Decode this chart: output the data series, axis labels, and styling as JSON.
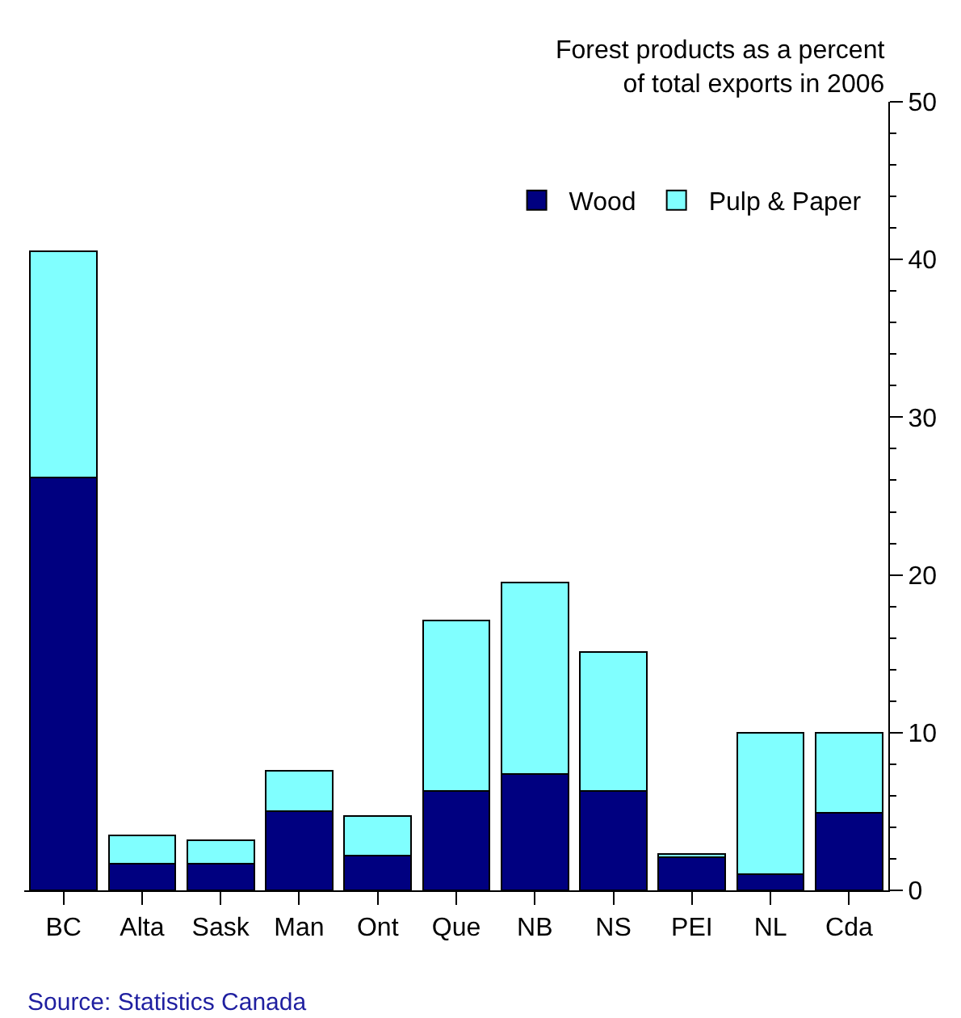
{
  "chart_data": {
    "type": "bar",
    "stacked": true,
    "title": "Forest products as a percent\nof total exports in 2006",
    "categories": [
      "BC",
      "Alta",
      "Sask",
      "Man",
      "Ont",
      "Que",
      "NB",
      "NS",
      "PEI",
      "NL",
      "Cda"
    ],
    "series": [
      {
        "name": "Wood",
        "color": "#000080",
        "values": [
          26.2,
          1.7,
          1.7,
          5.0,
          2.2,
          6.3,
          7.4,
          6.3,
          2.1,
          1.0,
          4.9
        ]
      },
      {
        "name": "Pulp & Paper",
        "color": "#80ffff",
        "values": [
          14.3,
          1.8,
          1.5,
          2.6,
          2.5,
          10.8,
          12.1,
          8.8,
          0.2,
          9.0,
          5.1
        ]
      }
    ],
    "ylim": [
      0,
      50
    ],
    "yticks": [
      0,
      {
        "value": 2,
        "label": null
      },
      {
        "value": 4,
        "label": null
      },
      {
        "value": 6,
        "label": null
      },
      {
        "value": 8,
        "label": null
      },
      10,
      {
        "value": 12,
        "label": null
      },
      {
        "value": 14,
        "label": null
      },
      {
        "value": 16,
        "label": null
      },
      {
        "value": 18,
        "label": null
      },
      20,
      {
        "value": 22,
        "label": null
      },
      {
        "value": 24,
        "label": null
      },
      {
        "value": 26,
        "label": null
      },
      {
        "value": 28,
        "label": null
      },
      30,
      {
        "value": 32,
        "label": null
      },
      {
        "value": 34,
        "label": null
      },
      {
        "value": 36,
        "label": null
      },
      {
        "value": 38,
        "label": null
      },
      40,
      {
        "value": 42,
        "label": null
      },
      {
        "value": 44,
        "label": null
      },
      {
        "value": 46,
        "label": null
      },
      {
        "value": 48,
        "label": null
      },
      50
    ],
    "legend": "top right",
    "annotations": [
      "Source: Statistics Canada"
    ]
  }
}
